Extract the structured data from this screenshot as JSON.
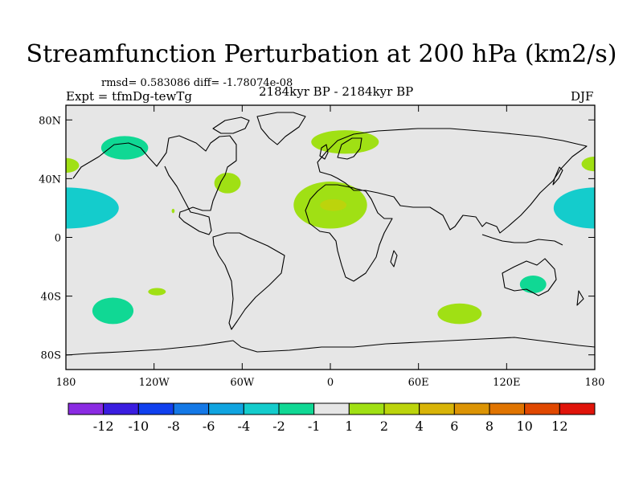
{
  "title": "Streamfunction Perturbation at 200 hPa (km2/s)",
  "stats": "rmsd= 0.583086 diff= -1.78074e-08",
  "experiment": "Expt = tfmDg-tewTg",
  "period": "2184kyr BP - 2184kyr BP",
  "season": "DJF",
  "lat_ticks": [
    {
      "lat": 80,
      "label": "80N"
    },
    {
      "lat": 40,
      "label": "40N"
    },
    {
      "lat": 0,
      "label": "0"
    },
    {
      "lat": -40,
      "label": "40S"
    },
    {
      "lat": -80,
      "label": "80S"
    }
  ],
  "lon_ticks": [
    {
      "lon": -180,
      "label": "180"
    },
    {
      "lon": -120,
      "label": "120W"
    },
    {
      "lon": -60,
      "label": "60W"
    },
    {
      "lon": 0,
      "label": "0"
    },
    {
      "lon": 60,
      "label": "60E"
    },
    {
      "lon": 120,
      "label": "120E"
    },
    {
      "lon": 180,
      "label": "180"
    }
  ],
  "colorbar": {
    "colors": [
      "#8a2be2",
      "#3a1de0",
      "#1040ee",
      "#1478e6",
      "#10a4e0",
      "#14cccc",
      "#10d894",
      "#e6e6e6",
      "#a0e014",
      "#bcd40c",
      "#d8b408",
      "#dc9404",
      "#e07400",
      "#e04800",
      "#e0140a"
    ],
    "labels": [
      "-12",
      "-10",
      "-8",
      "-6",
      "-4",
      "-2",
      "-1",
      "1",
      "2",
      "4",
      "6",
      "8",
      "10",
      "12"
    ]
  },
  "chart_data": {
    "type": "map",
    "variable": "Streamfunction Perturbation at 200 hPa (km2/s)",
    "projection": "cylindrical equidistant",
    "lon_range": [
      -180,
      180
    ],
    "lat_range": [
      -90,
      90
    ],
    "contour_levels": [
      -12,
      -10,
      -8,
      -6,
      -4,
      -2,
      -1,
      1,
      2,
      4,
      6,
      8,
      10,
      12
    ],
    "anomalies": [
      {
        "name": "north-pacific-negative",
        "lon": -140,
        "lat": 61,
        "dlon": 16,
        "dlat": 8,
        "value": -1.5
      },
      {
        "name": "west-pacific-negative",
        "lon": -180,
        "lat": 20,
        "dlon": 36,
        "dlat": 14,
        "value": -2.4
      },
      {
        "name": "west-pacific-core",
        "lon": -180,
        "lat": 20,
        "dlon": 16,
        "dlat": 7,
        "value": -3
      },
      {
        "name": "dateline-west-negative",
        "lon": 180,
        "lat": 20,
        "dlon": 28,
        "dlat": 14,
        "value": -2.4
      },
      {
        "name": "dateline-west-core",
        "lon": 180,
        "lat": 20,
        "dlon": 12,
        "dlat": 7,
        "value": -3
      },
      {
        "name": "north-pacific-positive-west",
        "lon": -180,
        "lat": 49,
        "dlon": 9,
        "dlat": 5,
        "value": 1.5
      },
      {
        "name": "north-pacific-positive-east",
        "lon": 180,
        "lat": 50,
        "dlon": 9,
        "dlat": 5,
        "value": 1.5
      },
      {
        "name": "north-atlantic-positive",
        "lon": 10,
        "lat": 65,
        "dlon": 23,
        "dlat": 8,
        "value": 1.5
      },
      {
        "name": "east-us-positive",
        "lon": -70,
        "lat": 37,
        "dlon": 9,
        "dlat": 7,
        "value": 1.5
      },
      {
        "name": "north-africa-positive",
        "lon": 0,
        "lat": 22,
        "dlon": 25,
        "dlat": 16,
        "value": 1.8
      },
      {
        "name": "north-africa-core",
        "lon": 2,
        "lat": 22,
        "dlon": 9,
        "dlat": 4,
        "value": 3
      },
      {
        "name": "central-pacific-small",
        "lon": -107,
        "lat": 18,
        "dlon": 1,
        "dlat": 1.5,
        "value": 1.5
      },
      {
        "name": "south-pacific-negative",
        "lon": -148,
        "lat": -50,
        "dlon": 14,
        "dlat": 9,
        "value": -1.5
      },
      {
        "name": "south-pacific-small",
        "lon": -118,
        "lat": -37,
        "dlon": 6,
        "dlat": 2.5,
        "value": 1.5
      },
      {
        "name": "southern-indian-positive",
        "lon": 88,
        "lat": -52,
        "dlon": 15,
        "dlat": 7,
        "value": 1.5
      },
      {
        "name": "australia-negative",
        "lon": 138,
        "lat": -32,
        "dlon": 9,
        "dlat": 6,
        "value": -1.5
      }
    ]
  }
}
